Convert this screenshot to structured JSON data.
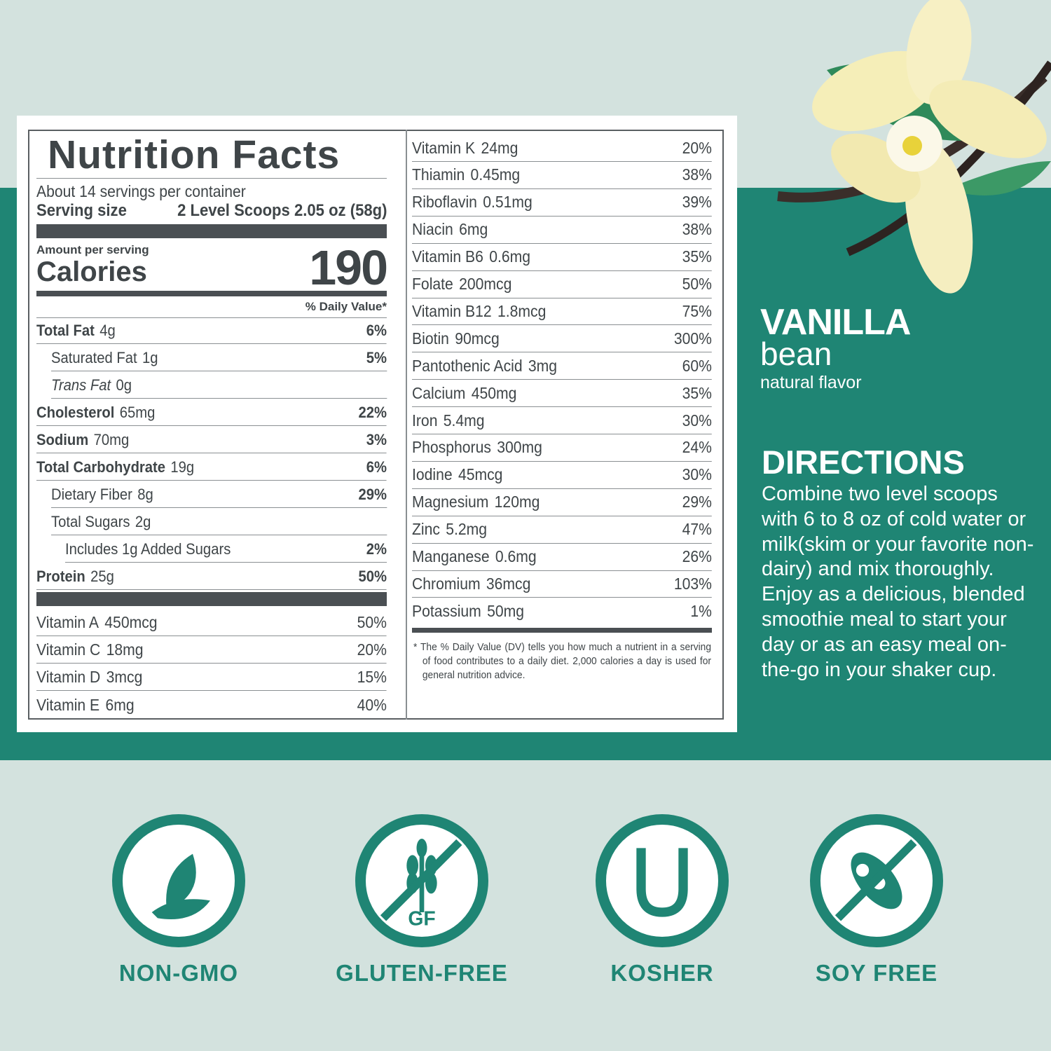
{
  "label": {
    "title": "Nutrition Facts",
    "servings": "About 14 servings per container",
    "serving_size_label": "Serving size",
    "serving_size_value": "2 Level Scoops 2.05 oz (58g)",
    "amount_per_serving": "Amount per serving",
    "calories_label": "Calories",
    "calories_value": "190",
    "dv_header": "% Daily Value*",
    "nutrients": [
      {
        "name": "Total Fat",
        "amount": "4g",
        "dv": "6%",
        "bold": true,
        "indent": 0
      },
      {
        "name": "Saturated Fat",
        "amount": "1g",
        "dv": "5%",
        "bold": false,
        "indent": 1
      },
      {
        "name": "Trans Fat",
        "amount": "0g",
        "dv": "",
        "bold": false,
        "indent": 1,
        "italic": true
      },
      {
        "name": "Cholesterol",
        "amount": "65mg",
        "dv": "22%",
        "bold": true,
        "indent": 0
      },
      {
        "name": "Sodium",
        "amount": "70mg",
        "dv": "3%",
        "bold": true,
        "indent": 0
      },
      {
        "name": "Total Carbohydrate",
        "amount": "19g",
        "dv": "6%",
        "bold": true,
        "indent": 0
      },
      {
        "name": "Dietary Fiber",
        "amount": "8g",
        "dv": "29%",
        "bold": false,
        "indent": 1
      },
      {
        "name": "Total Sugars",
        "amount": "2g",
        "dv": "",
        "bold": false,
        "indent": 1
      },
      {
        "name": "Includes 1g Added Sugars",
        "amount": "",
        "dv": "2%",
        "bold": false,
        "indent": 2
      },
      {
        "name": "Protein",
        "amount": "25g",
        "dv": "50%",
        "bold": true,
        "indent": 0
      }
    ],
    "vitamins_left": [
      {
        "name": "Vitamin A",
        "amount": "450mcg",
        "dv": "50%"
      },
      {
        "name": "Vitamin C",
        "amount": "18mg",
        "dv": "20%"
      },
      {
        "name": "Vitamin D",
        "amount": "3mcg",
        "dv": "15%"
      },
      {
        "name": "Vitamin E",
        "amount": "6mg",
        "dv": "40%"
      }
    ],
    "vitamins_right": [
      {
        "name": "Vitamin K",
        "amount": "24mg",
        "dv": "20%"
      },
      {
        "name": "Thiamin",
        "amount": "0.45mg",
        "dv": "38%"
      },
      {
        "name": "Riboflavin",
        "amount": "0.51mg",
        "dv": "39%"
      },
      {
        "name": "Niacin",
        "amount": "6mg",
        "dv": "38%"
      },
      {
        "name": "Vitamin B6",
        "amount": "0.6mg",
        "dv": "35%"
      },
      {
        "name": "Folate",
        "amount": "200mcg",
        "dv": "50%"
      },
      {
        "name": "Vitamin B12",
        "amount": "1.8mcg",
        "dv": "75%"
      },
      {
        "name": "Biotin",
        "amount": "90mcg",
        "dv": "300%"
      },
      {
        "name": "Pantothenic Acid",
        "amount": "3mg",
        "dv": "60%"
      },
      {
        "name": "Calcium",
        "amount": "450mg",
        "dv": "35%"
      },
      {
        "name": "Iron",
        "amount": "5.4mg",
        "dv": "30%"
      },
      {
        "name": "Phosphorus",
        "amount": "300mg",
        "dv": "24%"
      },
      {
        "name": "Iodine",
        "amount": "45mcg",
        "dv": "30%"
      },
      {
        "name": "Magnesium",
        "amount": "120mg",
        "dv": "29%"
      },
      {
        "name": "Zinc",
        "amount": "5.2mg",
        "dv": "47%"
      },
      {
        "name": "Manganese",
        "amount": "0.6mg",
        "dv": "26%"
      },
      {
        "name": "Chromium",
        "amount": "36mcg",
        "dv": "103%"
      },
      {
        "name": "Potassium",
        "amount": "50mg",
        "dv": "1%"
      }
    ],
    "footnote": "* The % Daily Value (DV) tells you how much a nutrient in a serving of food contributes to a daily diet. 2,000 calories a day is used for general nutrition advice."
  },
  "flavor": {
    "line1": "VANILLA",
    "line2": "bean",
    "line3": "natural flavor"
  },
  "directions": {
    "heading": "DIRECTIONS",
    "text": "Combine two level scoops with 6 to 8 oz of cold water or milk(skim or your favorite non-dairy) and mix thoroughly. Enjoy as a delicious, blended smoothie meal to start your day or as an easy meal on-the-go in your shaker cup."
  },
  "badges": [
    {
      "icon": "leaf-icon",
      "label": "NON-GMO"
    },
    {
      "icon": "wheat-crossed-icon",
      "label": "GLUTEN-FREE",
      "icon_text": "GF"
    },
    {
      "icon": "kosher-u-icon",
      "label": "KOSHER",
      "icon_text": "U"
    },
    {
      "icon": "soy-crossed-icon",
      "label": "SOY FREE"
    }
  ],
  "colors": {
    "teal": "#1f8574",
    "background": "#d3e2de",
    "text": "#3f4548"
  }
}
